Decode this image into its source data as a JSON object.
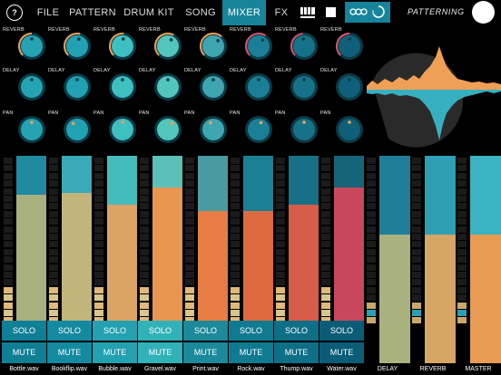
{
  "nav": {
    "help": "?",
    "items": [
      "FILE",
      "PATTERN",
      "DRUM KIT",
      "SONG",
      "MIXER",
      "FX"
    ],
    "active": "MIXER",
    "brand": "PATTERNING"
  },
  "knob_labels": {
    "reverb": "REVERB",
    "delay": "DELAY",
    "pan": "PAN"
  },
  "knob_values": {
    "reverb": [
      0.5,
      0.55,
      0.52,
      0.6,
      0.65,
      0.62,
      0.48,
      0.5
    ],
    "delay": [
      0.5,
      0.5,
      0.5,
      0.5,
      0.5,
      0.5,
      0.5,
      0.5
    ],
    "pan": [
      0.5,
      0.38,
      0.5,
      0.62,
      0.42,
      0.57,
      0.5,
      0.5
    ]
  },
  "channels": [
    {
      "name": "Bottle.wav",
      "solo": "SOLO",
      "mute": "MUTE",
      "level": 0.77,
      "color": "#a8b07e",
      "top_color": "#1f8aa0",
      "solo_color": "#0f7f95",
      "mute_color": "#0f7f95"
    },
    {
      "name": "Bookflip.wav",
      "solo": "SOLO",
      "mute": "MUTE",
      "level": 0.78,
      "color": "#c2b57c",
      "top_color": "#3aaab8",
      "solo_color": "#148aa0",
      "mute_color": "#148aa0"
    },
    {
      "name": "Bubble.wav",
      "solo": "SOLO",
      "mute": "MUTE",
      "level": 0.71,
      "color": "#dba464",
      "top_color": "#45bcbc",
      "solo_color": "#23a1b0",
      "mute_color": "#23a1b0"
    },
    {
      "name": "Gravel.wav",
      "solo": "SOLO",
      "mute": "MUTE",
      "level": 0.81,
      "color": "#e89651",
      "top_color": "#5bc1b8",
      "solo_color": "#31b2b8",
      "mute_color": "#31b2b8"
    },
    {
      "name": "Print.wav",
      "solo": "SOLO",
      "mute": "MUTE",
      "level": 0.67,
      "color": "#e77d44",
      "top_color": "#4a9aa2",
      "solo_color": "#1c8a9a",
      "mute_color": "#1c8a9a"
    },
    {
      "name": "Rock.wav",
      "solo": "SOLO",
      "mute": "MUTE",
      "level": 0.67,
      "color": "#dd6a3f",
      "top_color": "#1b7f94",
      "solo_color": "#107a90",
      "mute_color": "#107a90"
    },
    {
      "name": "Thump.wav",
      "solo": "SOLO",
      "mute": "MUTE",
      "level": 0.71,
      "color": "#d85c4a",
      "top_color": "#177088",
      "solo_color": "#0e6f86",
      "mute_color": "#0e6f86"
    },
    {
      "name": "Water.wav",
      "solo": "SOLO",
      "mute": "MUTE",
      "level": 0.81,
      "color": "#c9475c",
      "top_color": "#16637c",
      "solo_color": "#0b5c76",
      "mute_color": "#0b5c76"
    }
  ],
  "buses": [
    {
      "name": "DELAY",
      "level": 0.62,
      "color": "#a9b27f",
      "top_color": "#1f7f9a"
    },
    {
      "name": "REVERB",
      "level": 0.62,
      "color": "#d7a565",
      "top_color": "#2f9fb5"
    },
    {
      "name": "MASTER",
      "level": 0.62,
      "color": "#e89b55",
      "top_color": "#3bb3c0"
    }
  ],
  "colors": {
    "accent": "#16849b",
    "knob_teal": "#25a3b3",
    "knob_ring": "#0d3a45",
    "wave_orange": "#f0a055",
    "wave_teal": "#36b0c0"
  }
}
